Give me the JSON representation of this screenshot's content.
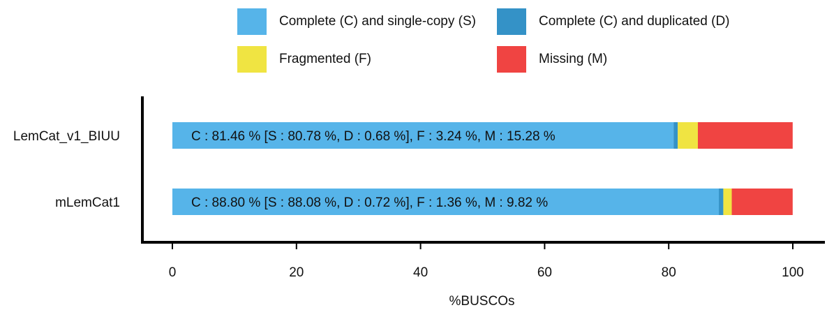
{
  "chart_data": {
    "type": "bar",
    "orientation": "horizontal",
    "stacked": true,
    "title": "",
    "xlabel": "%BUSCOs",
    "ylabel": "",
    "xlim": [
      0,
      100
    ],
    "x_ticks": [
      0,
      20,
      40,
      60,
      80,
      100
    ],
    "grid": false,
    "legend_position": "top",
    "categories": [
      "LemCat_v1_BIUU",
      "mLemCat1"
    ],
    "series": [
      {
        "name": "Complete (C) and single-copy (S)",
        "color": "#56b4e9",
        "values": [
          80.78,
          88.08
        ]
      },
      {
        "name": "Complete (C) and duplicated (D)",
        "color": "#3492c7",
        "values": [
          0.68,
          0.72
        ]
      },
      {
        "name": "Fragmented (F)",
        "color": "#f0e442",
        "values": [
          3.24,
          1.36
        ]
      },
      {
        "name": "Missing (M)",
        "color": "#f04442",
        "values": [
          15.28,
          9.82
        ]
      }
    ],
    "bar_labels": [
      "C : 81.46 % [S : 80.78 %, D : 0.68 %], F : 3.24 %, M : 15.28 %",
      "C : 88.80 % [S : 88.08 %, D : 0.72 %], F : 1.36 %, M : 9.82 %"
    ]
  }
}
